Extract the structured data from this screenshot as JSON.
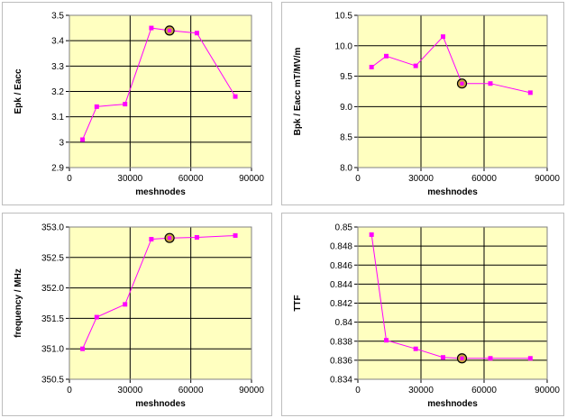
{
  "chart_data": [
    {
      "type": "line",
      "xlabel": "meshnodes",
      "ylabel": "Epk / Eacc",
      "xlim": [
        0,
        90000
      ],
      "ylim": [
        2.9,
        3.5
      ],
      "xticks": [
        "0",
        "30000",
        "60000",
        "90000"
      ],
      "yticks": [
        "2.9",
        "3",
        "3.1",
        "3.2",
        "3.3",
        "3.4",
        "3.5"
      ],
      "grid": true,
      "x": [
        6500,
        13500,
        27500,
        40500,
        49500,
        63000,
        82000
      ],
      "y": [
        3.01,
        3.14,
        3.15,
        3.45,
        3.44,
        3.43,
        3.18
      ],
      "highlight_index": 4,
      "line_color": "#ff00ff",
      "background_color": "#ffffc0"
    },
    {
      "type": "line",
      "xlabel": "meshnodes",
      "ylabel": "Bpk / Eacc mT/MV/m",
      "xlim": [
        0,
        90000
      ],
      "ylim": [
        8.0,
        10.5
      ],
      "xticks": [
        "0",
        "30000",
        "60000",
        "90000"
      ],
      "yticks": [
        "8.0",
        "8.5",
        "9.0",
        "9.5",
        "10.0",
        "10.5"
      ],
      "grid": true,
      "x": [
        6500,
        13500,
        27500,
        40500,
        49500,
        63000,
        82000
      ],
      "y": [
        9.65,
        9.83,
        9.67,
        10.15,
        9.38,
        9.38,
        9.23
      ],
      "highlight_index": 4,
      "line_color": "#ff00ff",
      "background_color": "#ffffc0"
    },
    {
      "type": "line",
      "xlabel": "meshnodes",
      "ylabel": "frequency / MHz",
      "xlim": [
        0,
        90000
      ],
      "ylim": [
        350.5,
        353.0
      ],
      "xticks": [
        "0",
        "30000",
        "60000",
        "90000"
      ],
      "yticks": [
        "350.5",
        "351.0",
        "351.5",
        "352.0",
        "352.5",
        "353.0"
      ],
      "grid": true,
      "x": [
        6500,
        13500,
        27500,
        40500,
        49500,
        63000,
        82000
      ],
      "y": [
        351.0,
        351.52,
        351.73,
        352.8,
        352.82,
        352.83,
        352.86
      ],
      "highlight_index": 4,
      "line_color": "#ff00ff",
      "background_color": "#ffffc0"
    },
    {
      "type": "line",
      "xlabel": "meshnodes",
      "ylabel": "TTF",
      "xlim": [
        0,
        90000
      ],
      "ylim": [
        0.834,
        0.85
      ],
      "xticks": [
        "0",
        "30000",
        "60000",
        "90000"
      ],
      "yticks": [
        "0.834",
        "0.836",
        "0.838",
        "0.84",
        "0.842",
        "0.844",
        "0.846",
        "0.848",
        "0.85"
      ],
      "grid": true,
      "x": [
        6500,
        13500,
        27500,
        40500,
        49500,
        63000,
        82000
      ],
      "y": [
        0.8492,
        0.8381,
        0.8372,
        0.8363,
        0.8362,
        0.8362,
        0.8362
      ],
      "highlight_index": 4,
      "line_color": "#ff00ff",
      "background_color": "#ffffc0"
    }
  ]
}
